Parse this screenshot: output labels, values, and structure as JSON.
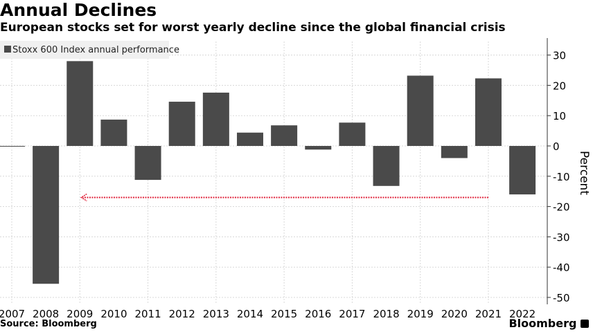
{
  "title": "Annual Declines",
  "subtitle": "European stocks set for worst yearly decline since the global financial crisis",
  "source": "Source: Bloomberg",
  "logo": "Bloomberg",
  "chart_data": {
    "type": "bar",
    "legend": {
      "label": "Stoxx 600 Index annual performance",
      "placement": "top-left"
    },
    "categories": [
      "2007",
      "2008",
      "2009",
      "2010",
      "2011",
      "2012",
      "2013",
      "2014",
      "2015",
      "2016",
      "2017",
      "2018",
      "2019",
      "2020",
      "2021",
      "2022"
    ],
    "values": [
      -0.2,
      -45.5,
      28,
      8.7,
      -11.2,
      14.6,
      17.6,
      4.4,
      6.8,
      -1.2,
      7.7,
      -13.2,
      23.2,
      -4,
      22.3,
      -16
    ],
    "ylabel": "Percent",
    "ylim": [
      -50,
      35
    ],
    "yticks": [
      30,
      20,
      10,
      0,
      -10,
      -20,
      -30,
      -40,
      -50
    ],
    "y_axis_side": "right",
    "grid": true,
    "bar_color": "#4a4a4a",
    "annotation": {
      "type": "dotted-arrow",
      "from": "2021",
      "to": "2009",
      "value": -17,
      "color": "#e0223a"
    }
  }
}
